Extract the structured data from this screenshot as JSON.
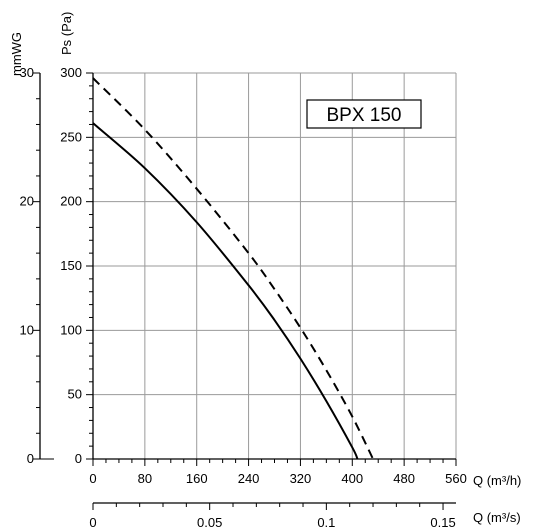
{
  "chart_data": {
    "type": "line",
    "model_label": "BPX 150",
    "ylabel_pa": "Ps (Pa)",
    "ylabel_mmwg": "mmWG",
    "xlabel_m3h": "Q (m³/h)",
    "xlabel_m3s": "Q (m³/s)",
    "xlim": [
      0,
      560
    ],
    "ylim": [
      0,
      300
    ],
    "mmwg_lim": [
      0,
      30
    ],
    "x_ticks": [
      0,
      80,
      160,
      240,
      320,
      400,
      480,
      560
    ],
    "y_ticks": [
      0,
      50,
      100,
      150,
      200,
      250,
      300
    ],
    "mmwg_ticks": [
      0,
      10,
      20,
      30
    ],
    "m3s_ticks": [
      {
        "label": "0",
        "value": 0
      },
      {
        "label": "0.05",
        "value": 0.05
      },
      {
        "label": "0.1",
        "value": 0.1
      },
      {
        "label": "0.15",
        "value": 0.15
      }
    ],
    "grid": true,
    "series": [
      {
        "style": "solid",
        "points": [
          [
            0,
            261
          ],
          [
            80,
            226
          ],
          [
            160,
            184
          ],
          [
            240,
            135
          ],
          [
            280,
            108
          ],
          [
            320,
            78
          ],
          [
            360,
            45
          ],
          [
            400,
            9
          ],
          [
            408,
            0
          ]
        ]
      },
      {
        "style": "dashed",
        "points": [
          [
            0,
            296
          ],
          [
            80,
            256
          ],
          [
            160,
            210
          ],
          [
            240,
            160
          ],
          [
            280,
            132
          ],
          [
            320,
            102
          ],
          [
            360,
            69
          ],
          [
            400,
            33
          ],
          [
            432,
            0
          ]
        ]
      }
    ]
  }
}
